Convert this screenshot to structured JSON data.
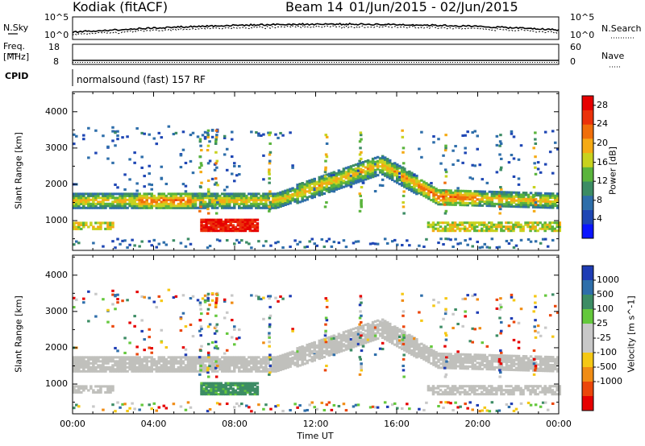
{
  "header": {
    "station": "Kodiak (fitACF)",
    "beam": "Beam 14",
    "dates": "01/Jun/2015 - 02/Jun/2015"
  },
  "strip_panels": {
    "nsky": {
      "label": "N.Sky",
      "ticks": [
        "10^5",
        "10^0"
      ]
    },
    "nsearch": {
      "label": "N.Search",
      "ticks": [
        "10^5",
        "10^0"
      ]
    },
    "freq": {
      "label_line1": "Freq.",
      "label_line2": "[MHz]",
      "ticks": [
        "18",
        "8"
      ]
    },
    "nave": {
      "label": "Nave",
      "ticks": [
        "60",
        "0"
      ]
    },
    "cpid": {
      "label": "CPID",
      "program": "normalsound (fast) 157 RF"
    }
  },
  "colors": {
    "power_scale": [
      "#0a14ff",
      "#1e46b4",
      "#2e6eaa",
      "#3c8c64",
      "#5ab43c",
      "#c8d21e",
      "#f5aa14",
      "#f06e0a",
      "#eb320a",
      "#e60000"
    ],
    "velocity_scale": [
      "#1e3cb4",
      "#2e6eaa",
      "#3c8c64",
      "#64c83c",
      "#c8c8c8",
      "#c8c8c8",
      "#f5c814",
      "#f08c14",
      "#eb460a",
      "#e60000"
    ],
    "ground_scatter": "#c0c0bc"
  },
  "chart_data": [
    {
      "type": "heatmap",
      "title": "Power",
      "quantity": "Power",
      "xlabel": "",
      "ylabel": "Slant Range [km]",
      "x_ticks": [
        "00:00",
        "04:00",
        "08:00",
        "12:00",
        "16:00",
        "20:00",
        "00:00"
      ],
      "xlim_hours": [
        0,
        24
      ],
      "ylim_km": [
        180,
        4550
      ],
      "y_ticks": [
        1000,
        2000,
        3000,
        4000
      ],
      "y_tick_labels": [
        "1000",
        "2000",
        "3000",
        "4000"
      ],
      "colorbar": {
        "label": "Power [dB]",
        "ticks": [
          "28",
          "24",
          "20",
          "16",
          "12",
          "8",
          "4"
        ],
        "range": [
          0,
          30
        ]
      },
      "bands": [
        {
          "name": "main F-region echo",
          "t_range": [
            0,
            24
          ],
          "range_km": [
            1350,
            1750
          ],
          "typical_value_db": 14,
          "note": "tracks 1800-2700 km near 13:00-16:00"
        },
        {
          "name": "enhanced patch",
          "t_range": [
            6.3,
            9.1
          ],
          "range_km": [
            720,
            1020
          ],
          "typical_value_db": 28
        },
        {
          "name": "lower band",
          "t_range": [
            17.5,
            24
          ],
          "range_km": [
            720,
            950
          ],
          "typical_value_db": 18
        },
        {
          "name": "morning lower band",
          "t_range": [
            0,
            2.0
          ],
          "range_km": [
            770,
            950
          ],
          "typical_value_db": 18
        }
      ]
    },
    {
      "type": "heatmap",
      "title": "Velocity",
      "quantity": "Velocity",
      "xlabel": "Time UT",
      "ylabel": "Slant Range [km]",
      "x_ticks": [
        "00:00",
        "04:00",
        "08:00",
        "12:00",
        "16:00",
        "20:00",
        "00:00"
      ],
      "xlim_hours": [
        0,
        24
      ],
      "ylim_km": [
        180,
        4550
      ],
      "y_ticks": [
        1000,
        2000,
        3000,
        4000
      ],
      "y_tick_labels": [
        "1000",
        "2000",
        "3000",
        "4000"
      ],
      "colorbar": {
        "label": "Velocity [m s^-1]",
        "ticks": [
          "1000",
          "500",
          "100",
          "25",
          "-25",
          "-100",
          "-500",
          "-1000"
        ]
      },
      "bands": [
        {
          "name": "ground scatter",
          "t_range": [
            0,
            24
          ],
          "range_km": [
            1350,
            1750
          ],
          "typical_value_ms": 0
        },
        {
          "name": "fast patch",
          "t_range": [
            5.8,
            9.2
          ],
          "range_km": [
            720,
            1050
          ],
          "typical_value_ms": 300
        }
      ]
    }
  ]
}
